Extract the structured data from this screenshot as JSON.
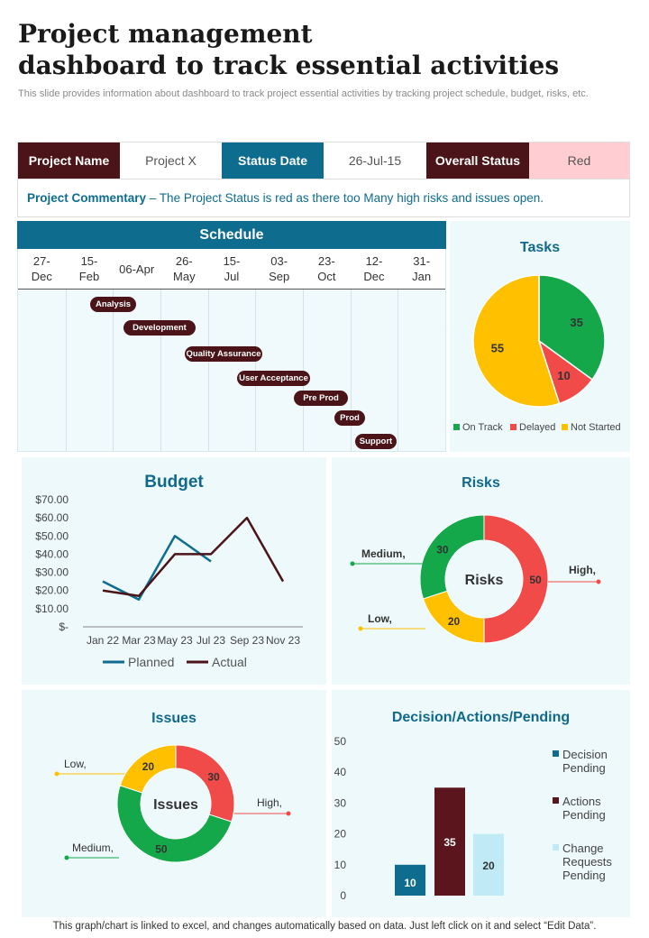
{
  "title_line1": "Project management",
  "title_line2": "dashboard to track essential activities",
  "subtitle": "This slide provides information about dashboard to track project essential activities by tracking project schedule, budget, risks, etc.",
  "status": {
    "project_name_label": "Project Name",
    "project_name_value": "Project X",
    "status_date_label": "Status Date",
    "status_date_value": "26-Jul-15",
    "overall_status_label": "Overall Status",
    "overall_status_value": "Red"
  },
  "commentary": {
    "label": "Project Commentary",
    "text": " – The Project Status is red as there too Many high risks and issues open."
  },
  "colors": {
    "maroon": "#4a1418",
    "teal": "#0e6c8f",
    "green": "#14a84a",
    "red": "#f04b48",
    "yellow": "#ffc000",
    "light_blue": "#bfeaf6",
    "status_red_bg": "#ffcdd2"
  },
  "schedule": {
    "title": "Schedule",
    "dates": [
      [
        "27-",
        "Dec"
      ],
      [
        "15-",
        "Feb"
      ],
      [
        "06-Apr",
        ""
      ],
      [
        "26-",
        "May"
      ],
      [
        "15-",
        "Jul"
      ],
      [
        "03-",
        "Sep"
      ],
      [
        "23-",
        "Oct"
      ],
      [
        "12-",
        "Dec"
      ],
      [
        "31-",
        "Jan"
      ]
    ],
    "tasks": [
      "Analysis",
      "Development",
      "Quality Assurance",
      "User Acceptance",
      "Pre Prod",
      "Prod",
      "Support"
    ]
  },
  "footer": "This graph/chart is linked to excel,  and changes automatically based on data. Just left click on it and select “Edit Data”.",
  "chart_data": [
    {
      "id": "tasks",
      "type": "pie",
      "title": "Tasks",
      "categories": [
        "On Track",
        "Delayed",
        "Not Started"
      ],
      "values": [
        35,
        10,
        55
      ],
      "legend": "bottom"
    },
    {
      "id": "budget",
      "type": "line",
      "title": "Budget",
      "categories": [
        "Jan 22",
        "Mar 23",
        "May 23",
        "Jul 23",
        "Sep 23",
        "Nov 23"
      ],
      "y_ticks": [
        "$70.00",
        "$60.00",
        "$50.00",
        "$40.00",
        "$30.00",
        "$20.00",
        "$10.00",
        "$-"
      ],
      "ylim": [
        0,
        70
      ],
      "series": [
        {
          "name": "Planned",
          "x": [
            0,
            1,
            2,
            3
          ],
          "values": [
            25,
            15,
            50,
            36
          ]
        },
        {
          "name": "Actual",
          "x": [
            0,
            1,
            2,
            3,
            4,
            5
          ],
          "values": [
            20,
            17,
            40,
            40,
            60,
            25
          ]
        }
      ],
      "legend": "bottom"
    },
    {
      "id": "risks",
      "type": "donut",
      "title": "Risks",
      "center_label": "Risks",
      "categories": [
        "High,",
        "Low,",
        "Medium,"
      ],
      "values": [
        50,
        20,
        30
      ]
    },
    {
      "id": "issues",
      "type": "donut",
      "title": "Issues",
      "center_label": "Issues",
      "categories": [
        "High,",
        "Medium,",
        "Low,"
      ],
      "values": [
        30,
        50,
        20
      ]
    },
    {
      "id": "decisions",
      "type": "bar",
      "title": "Decision/Actions/Pending",
      "categories": [
        "Decision Pending",
        "Actions Pending",
        "Change Requests Pending"
      ],
      "legend_lines": [
        [
          "Decision",
          "Pending"
        ],
        [
          "Actions",
          "Pending"
        ],
        [
          "Change",
          "Requests",
          "Pending"
        ]
      ],
      "values": [
        10,
        35,
        20
      ],
      "y_ticks": [
        "50",
        "40",
        "30",
        "20",
        "10",
        "0"
      ],
      "ylim": [
        0,
        50
      ]
    }
  ]
}
